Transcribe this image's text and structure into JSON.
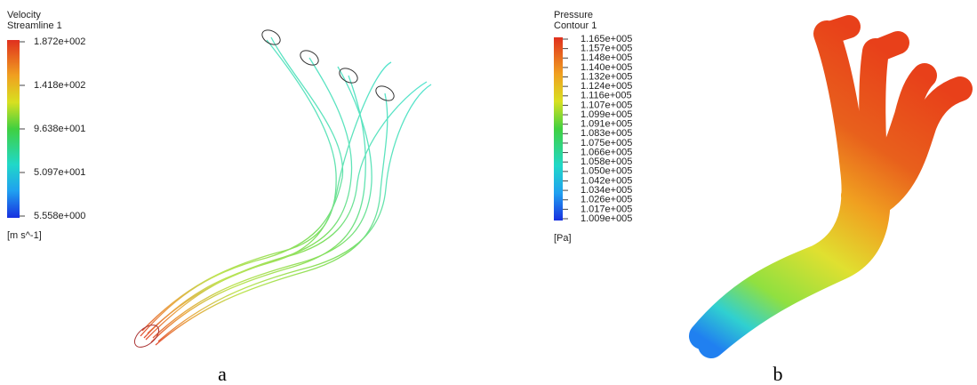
{
  "panels": [
    {
      "legend": {
        "title": "Velocity",
        "subtitle": "Streamline 1",
        "labels": [
          "1.872e+002",
          "1.418e+002",
          "9.638e+001",
          "5.097e+001",
          "5.558e+000"
        ],
        "unit": "[m s^-1]"
      },
      "caption": "a"
    },
    {
      "legend": {
        "title": "Pressure",
        "subtitle": "Contour 1",
        "labels": [
          "1.165e+005",
          "1.157e+005",
          "1.148e+005",
          "1.140e+005",
          "1.132e+005",
          "1.124e+005",
          "1.116e+005",
          "1.107e+005",
          "1.099e+005",
          "1.091e+005",
          "1.083e+005",
          "1.075e+005",
          "1.066e+005",
          "1.058e+005",
          "1.050e+005",
          "1.042e+005",
          "1.034e+005",
          "1.026e+005",
          "1.017e+005",
          "1.009e+005"
        ],
        "unit": "[Pa]"
      },
      "caption": "b"
    }
  ]
}
